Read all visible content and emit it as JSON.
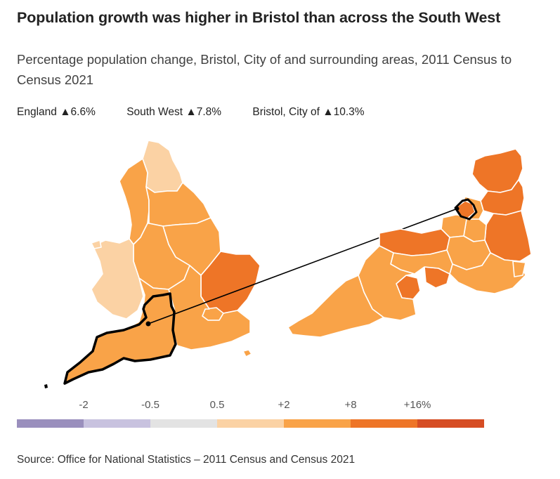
{
  "title": "Population growth was higher in Bristol than across the South West",
  "subtitle": "Percentage population change, Bristol, City of and surrounding areas, 2011 Census to Census 2021",
  "stats": [
    {
      "area": "England",
      "arrow": "▲",
      "value": "6.6%"
    },
    {
      "area": "South West",
      "arrow": "▲",
      "value": "7.8%"
    },
    {
      "area": "Bristol, City of",
      "arrow": "▲",
      "value": "10.3%"
    }
  ],
  "legend": {
    "ticks": [
      "-2",
      "-0.5",
      "0.5",
      "+2",
      "+8",
      "+16%"
    ],
    "colors": [
      "#9a8fbd",
      "#c8c2df",
      "#e3e3e3",
      "#fbd2a4",
      "#f9a348",
      "#ee7527",
      "#d64d24",
      "#ffffff"
    ]
  },
  "map_colors": {
    "north_east": "#fbd2a4",
    "wales": "#fbd2a4",
    "england_regions": "#f9a348",
    "east": "#ee7527",
    "south_west": "#f9a348",
    "region_border": "#ffffff",
    "highlight_outline": "#000000"
  },
  "source": "Source: Office for National Statistics – 2011 Census and Census 2021"
}
